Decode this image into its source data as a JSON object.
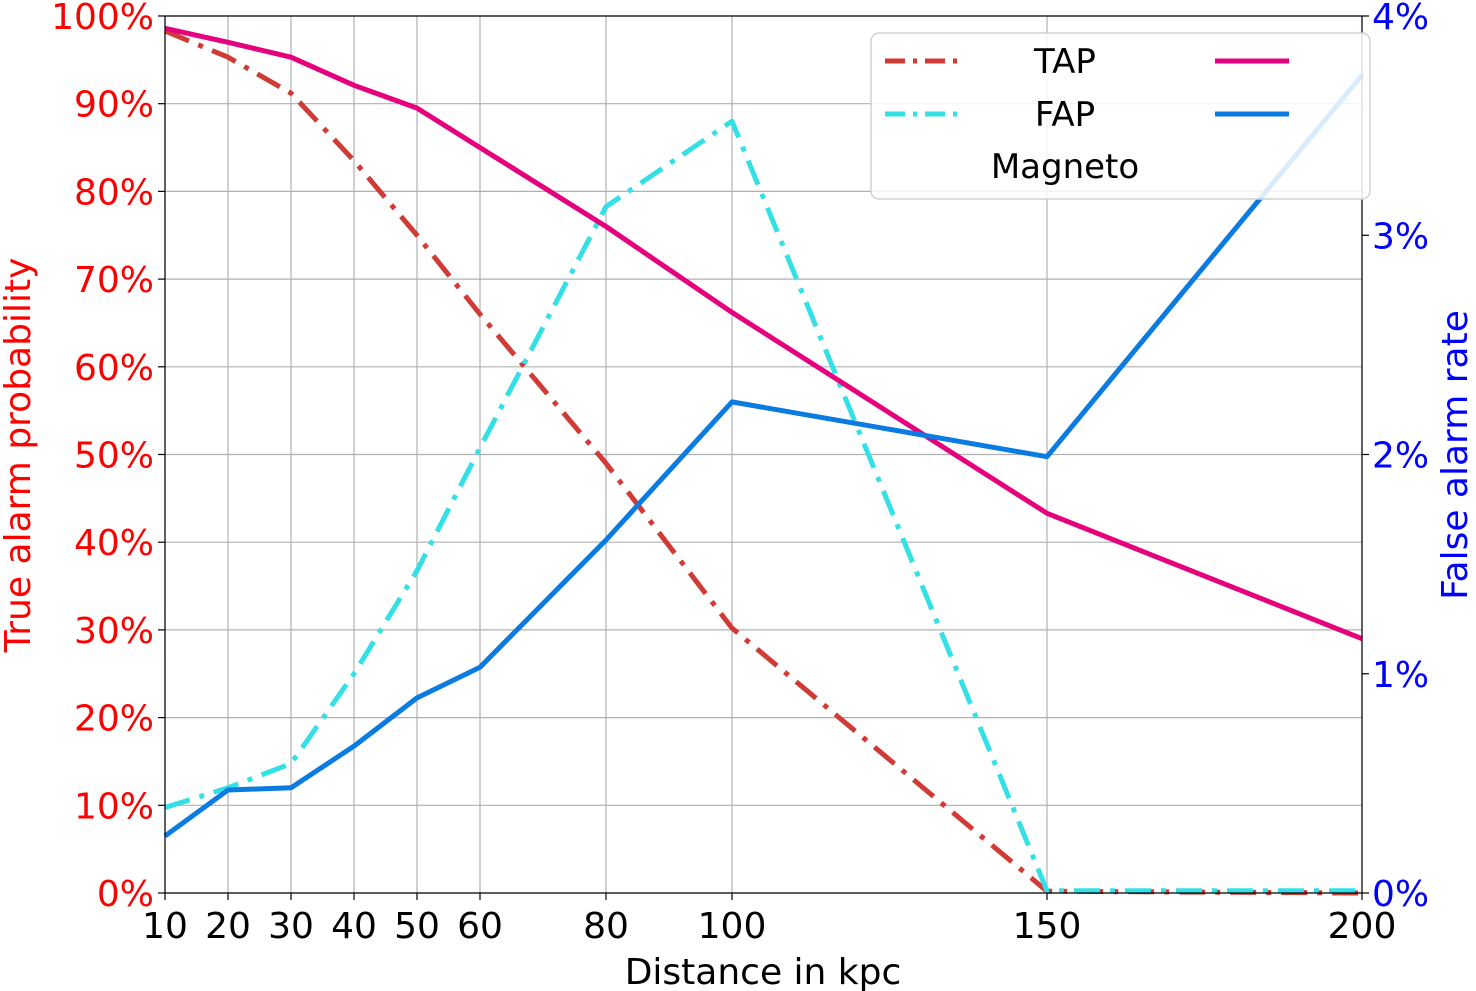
{
  "chart_data": {
    "type": "line",
    "x": [
      10,
      20,
      30,
      40,
      50,
      60,
      80,
      100,
      150,
      200
    ],
    "xticks": [
      "10",
      "20",
      "30",
      "40",
      "50",
      "60",
      "80",
      "100",
      "150",
      "200"
    ],
    "xlabel": "Distance in kpc",
    "ylabel_left": "True alarm probability",
    "ylabel_right": "False alarm rate",
    "ylim_left": [
      0,
      100
    ],
    "ylim_right": [
      0,
      4
    ],
    "yticks_left": [
      "0%",
      "10%",
      "20%",
      "30%",
      "40%",
      "50%",
      "60%",
      "70%",
      "80%",
      "90%",
      "100%"
    ],
    "yticks_right": [
      "0%",
      "1%",
      "2%",
      "3%",
      "4%"
    ],
    "grid": true,
    "legend": {
      "placement": "top-right",
      "col_left": [
        "TAP",
        "FAP",
        "Magneto"
      ]
    },
    "series": [
      {
        "name": "TAP",
        "axis": "left",
        "style": "dashdot",
        "color": "#d13b35",
        "values": [
          98.3,
          95.3,
          91.2,
          83.5,
          75.0,
          66.0,
          49.0,
          30.2,
          0.2,
          0.0
        ]
      },
      {
        "name": "FAP",
        "axis": "right",
        "style": "dashdot",
        "color": "#33e0e6",
        "values": [
          0.39,
          0.48,
          0.59,
          1.0,
          1.47,
          2.03,
          3.13,
          3.52,
          0.01,
          0.01
        ]
      },
      {
        "name": "Magneto TAP",
        "axis": "left",
        "style": "solid",
        "color": "#e5007d",
        "values": [
          98.6,
          97.0,
          95.3,
          92.1,
          89.5,
          85.0,
          76.0,
          66.2,
          43.3,
          29.0
        ]
      },
      {
        "name": "Magneto FAP",
        "axis": "right",
        "style": "solid",
        "color": "#0a7be0",
        "values": [
          0.26,
          0.47,
          0.48,
          0.67,
          0.89,
          1.03,
          1.61,
          2.24,
          1.99,
          3.73
        ]
      }
    ],
    "colors": {
      "left_axis": "#ff0000",
      "right_axis": "#0000ff",
      "grid": "#b0b0b0"
    }
  }
}
